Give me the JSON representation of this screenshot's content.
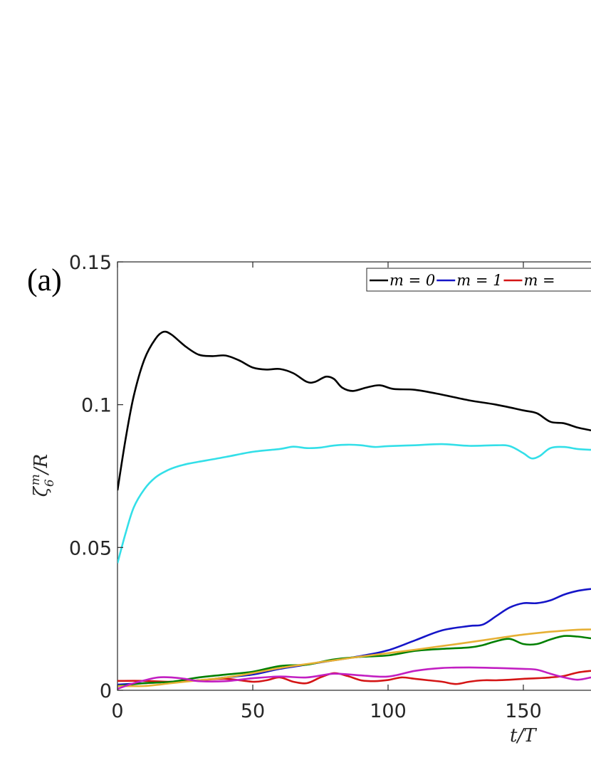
{
  "panel_label": "(a)",
  "chart_data": {
    "type": "line",
    "xlabel": "t/T",
    "ylabel": "ζ6m/R",
    "ylabel_parts": {
      "base": "ζ",
      "sub": "6",
      "sup": "m",
      "rest": "/R"
    },
    "xlim": [
      0,
      175
    ],
    "ylim": [
      0,
      0.15
    ],
    "xticks": [
      0,
      50,
      100,
      150
    ],
    "xtick_labels": [
      "0",
      "50",
      "100",
      "150"
    ],
    "yticks": [
      0,
      0.05,
      0.1,
      0.15
    ],
    "ytick_labels": [
      "0",
      "0.05",
      "0.1",
      "0.15"
    ],
    "grid": false,
    "legend_position": "top-right",
    "legend": [
      "m = 0",
      "m = 1",
      "m ="
    ],
    "series": [
      {
        "name": "m = 0",
        "color": "#000000",
        "x": [
          0,
          3,
          6,
          10,
          14,
          17,
          20,
          25,
          30,
          35,
          40,
          45,
          50,
          55,
          60,
          65,
          70,
          73,
          77,
          80,
          83,
          87,
          92,
          97,
          102,
          110,
          120,
          130,
          140,
          150,
          155,
          160,
          165,
          170,
          175
        ],
        "y": [
          0.07,
          0.088,
          0.103,
          0.116,
          0.123,
          0.1255,
          0.1245,
          0.1205,
          0.1175,
          0.117,
          0.1172,
          0.1155,
          0.113,
          0.1123,
          0.1125,
          0.111,
          0.108,
          0.108,
          0.1098,
          0.109,
          0.106,
          0.1048,
          0.106,
          0.1068,
          0.1055,
          0.1052,
          0.1035,
          0.1015,
          0.1,
          0.098,
          0.097,
          0.094,
          0.0935,
          0.092,
          0.091
        ]
      },
      {
        "name": "m = 1",
        "color": "#1515c8",
        "x": [
          0,
          10,
          20,
          30,
          40,
          50,
          60,
          70,
          80,
          90,
          100,
          110,
          120,
          130,
          135,
          140,
          145,
          150,
          155,
          160,
          165,
          170,
          175
        ],
        "y": [
          0.002,
          0.0025,
          0.003,
          0.0035,
          0.0045,
          0.0055,
          0.0075,
          0.009,
          0.0105,
          0.012,
          0.014,
          0.0175,
          0.021,
          0.0225,
          0.023,
          0.026,
          0.029,
          0.0305,
          0.0305,
          0.0315,
          0.0335,
          0.0348,
          0.0355
        ]
      },
      {
        "name": "m =",
        "color": "#d41515",
        "x": [
          0,
          10,
          20,
          30,
          40,
          50,
          55,
          60,
          65,
          70,
          75,
          80,
          85,
          90,
          95,
          100,
          105,
          110,
          115,
          120,
          125,
          130,
          135,
          140,
          145,
          150,
          155,
          160,
          165,
          170,
          175
        ],
        "y": [
          0.0033,
          0.0033,
          0.003,
          0.0035,
          0.004,
          0.003,
          0.0035,
          0.0045,
          0.003,
          0.0025,
          0.0045,
          0.006,
          0.005,
          0.0035,
          0.0032,
          0.0036,
          0.0045,
          0.004,
          0.0035,
          0.003,
          0.0022,
          0.003,
          0.0035,
          0.0035,
          0.0037,
          0.004,
          0.0042,
          0.0045,
          0.005,
          0.0062,
          0.0068
        ]
      },
      {
        "color": "#008000",
        "x": [
          0,
          10,
          20,
          30,
          40,
          50,
          60,
          70,
          80,
          90,
          100,
          110,
          120,
          130,
          135,
          140,
          145,
          150,
          155,
          160,
          165,
          170,
          175
        ],
        "y": [
          0.0015,
          0.0025,
          0.003,
          0.0045,
          0.0055,
          0.0065,
          0.0085,
          0.009,
          0.0108,
          0.0117,
          0.0122,
          0.0138,
          0.0145,
          0.015,
          0.0158,
          0.0172,
          0.018,
          0.0162,
          0.0162,
          0.0178,
          0.019,
          0.0188,
          0.0182
        ]
      },
      {
        "color": "#e6b035",
        "x": [
          0,
          10,
          20,
          30,
          40,
          50,
          60,
          70,
          80,
          90,
          100,
          110,
          120,
          130,
          140,
          150,
          160,
          170,
          175
        ],
        "y": [
          0.0015,
          0.0015,
          0.0025,
          0.0035,
          0.0045,
          0.006,
          0.0078,
          0.0092,
          0.0105,
          0.0118,
          0.013,
          0.0142,
          0.0155,
          0.0168,
          0.0182,
          0.0195,
          0.0205,
          0.0212,
          0.0213
        ]
      },
      {
        "color": "#c21fc2",
        "x": [
          0,
          5,
          10,
          15,
          20,
          25,
          30,
          40,
          50,
          60,
          70,
          80,
          90,
          100,
          110,
          120,
          130,
          140,
          150,
          155,
          160,
          165,
          170,
          175
        ],
        "y": [
          0.0005,
          0.0022,
          0.0035,
          0.0045,
          0.0045,
          0.004,
          0.0032,
          0.0032,
          0.0042,
          0.0048,
          0.0045,
          0.0058,
          0.0052,
          0.0048,
          0.0068,
          0.0078,
          0.008,
          0.0078,
          0.0075,
          0.0072,
          0.0058,
          0.0045,
          0.0037,
          0.0045
        ]
      },
      {
        "color": "#33dfe8",
        "x": [
          0,
          3,
          6,
          10,
          14,
          18,
          22,
          26,
          30,
          40,
          50,
          60,
          65,
          70,
          75,
          80,
          85,
          90,
          95,
          100,
          110,
          120,
          130,
          140,
          145,
          150,
          153,
          156,
          160,
          165,
          170,
          175
        ],
        "y": [
          0.0445,
          0.055,
          0.064,
          0.0705,
          0.0745,
          0.0768,
          0.0783,
          0.0793,
          0.08,
          0.0817,
          0.0835,
          0.0845,
          0.0853,
          0.0848,
          0.085,
          0.0857,
          0.086,
          0.0858,
          0.0852,
          0.0855,
          0.0858,
          0.0862,
          0.0856,
          0.0858,
          0.0855,
          0.083,
          0.0812,
          0.082,
          0.0848,
          0.0852,
          0.0845,
          0.0842
        ]
      }
    ]
  }
}
